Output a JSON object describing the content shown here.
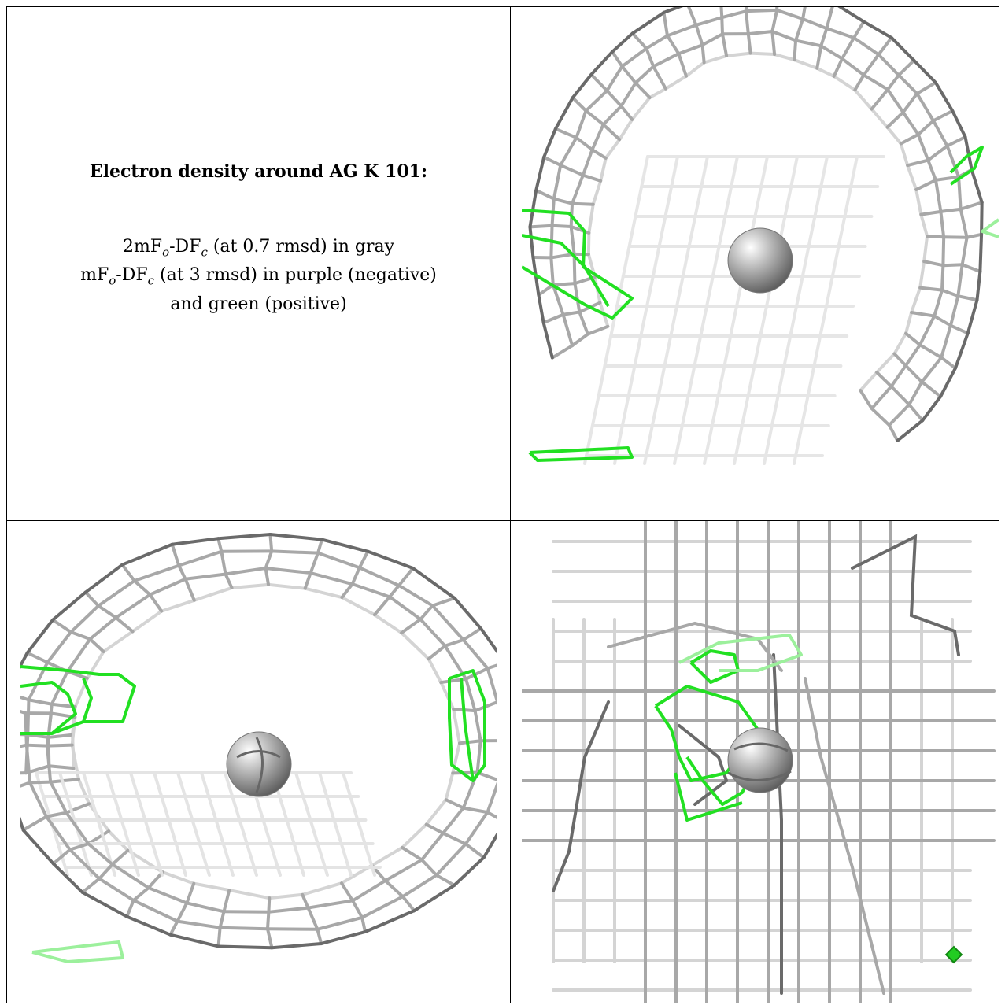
{
  "caption": {
    "title": "Electron density around AG K 101:",
    "line1_prefix": "2mF",
    "line1_sub_o": "o",
    "line1_mid": "-DF",
    "line1_sub_c": "c",
    "line1_suffix": " (at 0.7 rmsd) in gray",
    "line2_prefix": "mF",
    "line2_sub_o": "o",
    "line2_mid": "-DF",
    "line2_sub_c": "c",
    "line2_suffix": " (at 3 rmsd) in purple (negative)",
    "line3": "and green (positive)"
  },
  "colors": {
    "mesh_light": "#d4d4d4",
    "mesh_mid": "#a8a8a8",
    "mesh_dark": "#6a6a6a",
    "positive": "#22e022",
    "positive_faint": "#9cf09c",
    "ion_sphere": "#9a9a9a"
  },
  "panels": [
    {
      "name": "view-top-right",
      "ion": "AG K 101"
    },
    {
      "name": "view-bottom-left",
      "ion": "AG K 101"
    },
    {
      "name": "view-bottom-right",
      "ion": "AG K 101"
    }
  ]
}
